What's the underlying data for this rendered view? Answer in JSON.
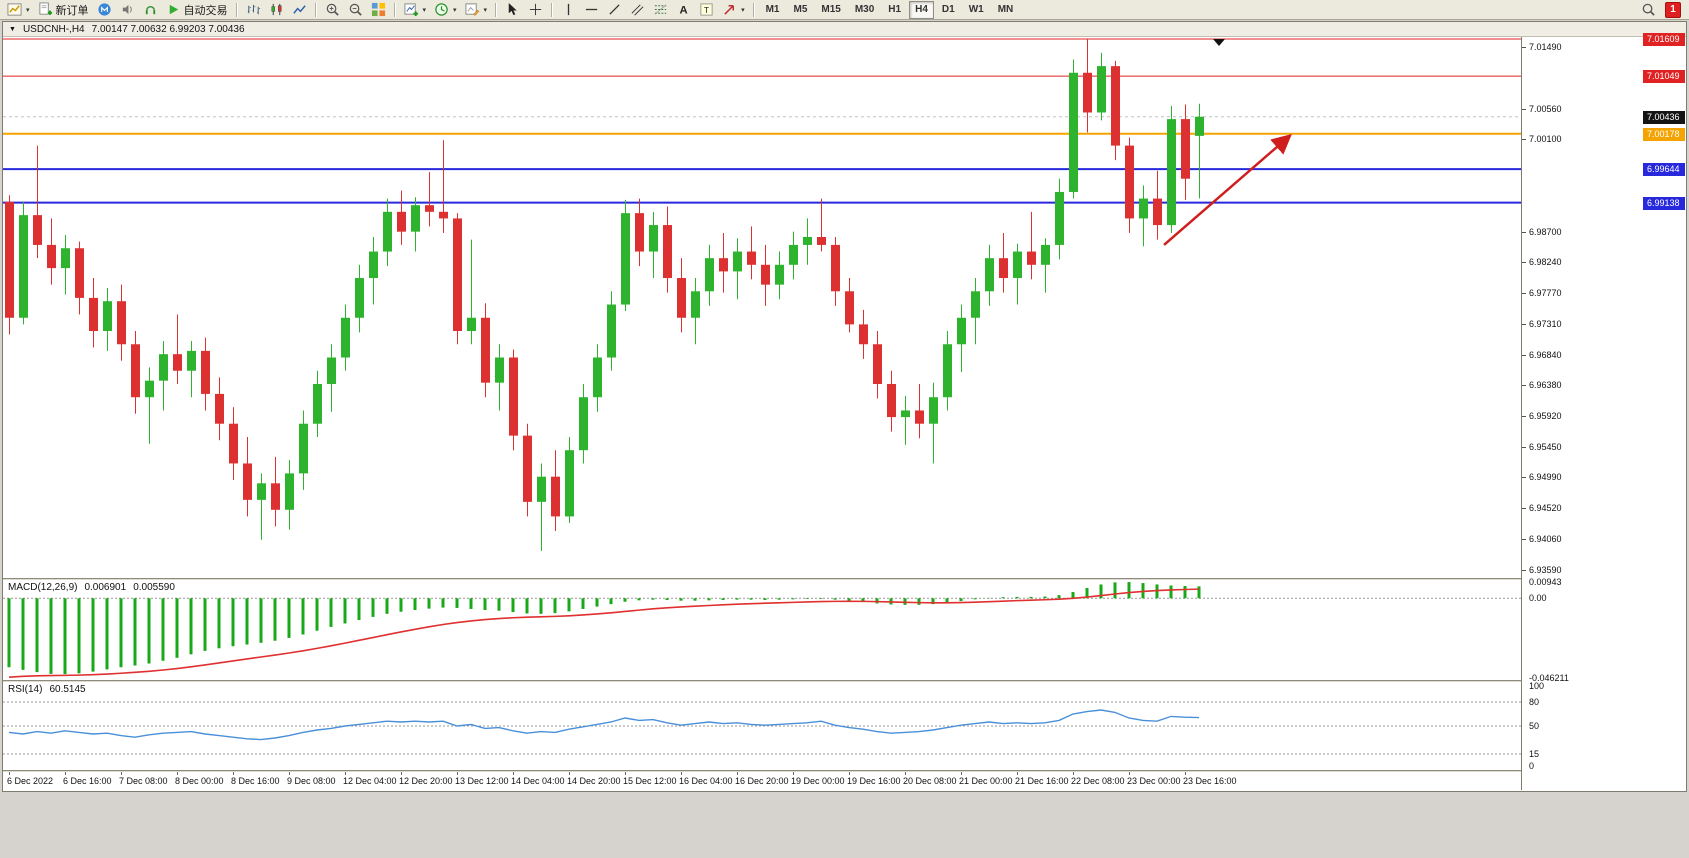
{
  "toolbar": {
    "items": [
      {
        "name": "new-chart-button",
        "icon": "newchart",
        "caret": true
      },
      {
        "name": "new-order-button",
        "icon": "neworder",
        "label": "新订单"
      },
      {
        "name": "community-button",
        "icon": "community"
      },
      {
        "name": "sounds-button",
        "icon": "sounds"
      },
      {
        "name": "support-button",
        "icon": "headset"
      },
      {
        "name": "auto-trading-button",
        "icon": "play",
        "label": "自动交易"
      },
      {
        "sep": true
      },
      {
        "name": "bar-chart-button",
        "icon": "bars"
      },
      {
        "name": "candle-chart-button",
        "icon": "candles"
      },
      {
        "name": "line-chart-button",
        "icon": "linechart"
      },
      {
        "sep": true
      },
      {
        "name": "zoom-in-button",
        "icon": "zoomin"
      },
      {
        "name": "zoom-out-button",
        "icon": "zoomout"
      },
      {
        "name": "tile-windows-button",
        "icon": "tile"
      },
      {
        "sep": true
      },
      {
        "name": "indicators-button",
        "icon": "indicators",
        "caret": true
      },
      {
        "name": "periods-button",
        "icon": "clock",
        "caret": true
      },
      {
        "name": "templates-button",
        "icon": "template",
        "caret": true
      },
      {
        "sep": true
      },
      {
        "name": "cursor-button",
        "icon": "cursor"
      },
      {
        "name": "crosshair-button",
        "icon": "crosshair"
      },
      {
        "sep": true
      },
      {
        "name": "vertical-line-button",
        "icon": "vline"
      },
      {
        "name": "horizontal-line-button",
        "icon": "hline"
      },
      {
        "name": "trendline-button",
        "icon": "trend"
      },
      {
        "name": "equidistant-channel-button",
        "icon": "channel"
      },
      {
        "name": "fibonacci-button",
        "icon": "fibo"
      },
      {
        "name": "text-button",
        "icon": "textA"
      },
      {
        "name": "text-label-button",
        "icon": "textT"
      },
      {
        "name": "arrows-button",
        "icon": "arrow",
        "caret": true
      },
      {
        "sep": true
      }
    ],
    "timeframes": [
      "M1",
      "M5",
      "M15",
      "M30",
      "H1",
      "H4",
      "D1",
      "W1",
      "MN"
    ],
    "active_timeframe": "H4",
    "notification_count": "1"
  },
  "chart_window": {
    "menu_marker": "▼",
    "symbol": "USDCNH-,H4",
    "ohlc_text": "7.00147 7.00632 6.99203 7.00436"
  },
  "price_scale": {
    "ticks": [
      "7.01490",
      "7.00560",
      "7.00100",
      "6.98700",
      "6.98240",
      "6.97770",
      "6.97310",
      "6.96840",
      "6.96380",
      "6.95920",
      "6.95450",
      "6.94990",
      "6.94520",
      "6.94060",
      "6.93590"
    ],
    "badges": [
      {
        "text": "7.01609",
        "price": 7.01609,
        "bg": "#e02222",
        "current": false
      },
      {
        "text": "7.01049",
        "price": 7.01049,
        "bg": "#e02222",
        "current": false
      },
      {
        "text": "7.00436",
        "price": 7.00436,
        "bg": "#141414",
        "current": true
      },
      {
        "text": "7.00178",
        "price": 7.00178,
        "bg": "#f5a300",
        "current": false
      },
      {
        "text": "6.99644",
        "price": 6.99644,
        "bg": "#2828dd",
        "current": false
      },
      {
        "text": "6.99138",
        "price": 6.99138,
        "bg": "#2828dd",
        "current": false
      }
    ]
  },
  "macd_panel": {
    "label": "MACD(12,26,9)",
    "main_value": "0.006901",
    "signal_value": "0.005590",
    "scale": [
      "0.00943",
      "0.00",
      "-0.046211"
    ]
  },
  "rsi_panel": {
    "label": "RSI(14)",
    "value": "60.5145",
    "scale": [
      "100",
      "80",
      "50",
      "15",
      "0"
    ]
  },
  "time_axis": {
    "labels": [
      "6 Dec 2022",
      "6 Dec 16:00",
      "7 Dec 08:00",
      "8 Dec 00:00",
      "8 Dec 16:00",
      "9 Dec 08:00",
      "12 Dec 04:00",
      "12 Dec 20:00",
      "13 Dec 12:00",
      "14 Dec 04:00",
      "14 Dec 20:00",
      "15 Dec 12:00",
      "16 Dec 04:00",
      "16 Dec 20:00",
      "19 Dec 00:00",
      "19 Dec 16:00",
      "20 Dec 08:00",
      "21 Dec 00:00",
      "21 Dec 16:00",
      "22 Dec 08:00",
      "23 Dec 00:00",
      "23 Dec 16:00"
    ]
  },
  "chart_data": {
    "type": "candlestick",
    "symbol": "USDCNH-",
    "timeframe": "H4",
    "title": "USDCNH-,H4",
    "current_bar": {
      "open": 7.00147,
      "high": 7.00632,
      "low": 6.99203,
      "close": 7.00436
    },
    "y_range": [
      6.9347,
      7.0164
    ],
    "colors": {
      "bull": "#2db32d",
      "bear": "#dd3030",
      "background": "#ffffff"
    },
    "horizontal_lines": [
      {
        "price": 7.01609,
        "color": "#e02222",
        "width": 1
      },
      {
        "price": 7.01049,
        "color": "#e02222",
        "width": 1
      },
      {
        "price": 7.00178,
        "color": "#f5a300",
        "width": 2
      },
      {
        "price": 6.99644,
        "color": "#2828dd",
        "width": 2
      },
      {
        "price": 6.99138,
        "color": "#2828dd",
        "width": 2
      }
    ],
    "x_labels_every": 4,
    "candles": [
      [
        6.9915,
        6.9925,
        6.9715,
        6.974
      ],
      [
        6.974,
        6.9915,
        6.973,
        6.9895
      ],
      [
        6.9895,
        7.0,
        6.983,
        6.985
      ],
      [
        6.985,
        6.989,
        6.979,
        6.9815
      ],
      [
        6.9815,
        6.9865,
        6.9775,
        6.9845
      ],
      [
        6.9845,
        6.9855,
        6.9745,
        6.977
      ],
      [
        6.977,
        6.98,
        6.9695,
        6.972
      ],
      [
        6.972,
        6.9785,
        6.969,
        6.9765
      ],
      [
        6.9765,
        6.979,
        6.9675,
        6.97
      ],
      [
        6.97,
        6.972,
        6.9595,
        6.962
      ],
      [
        6.962,
        6.9665,
        6.955,
        6.9645
      ],
      [
        6.9645,
        6.9705,
        6.96,
        6.9685
      ],
      [
        6.9685,
        6.9745,
        6.964,
        6.966
      ],
      [
        6.966,
        6.9705,
        6.962,
        6.969
      ],
      [
        6.969,
        6.971,
        6.96,
        6.9625
      ],
      [
        6.9625,
        6.965,
        6.9555,
        6.958
      ],
      [
        6.958,
        6.9605,
        6.9495,
        6.952
      ],
      [
        6.952,
        6.956,
        6.944,
        6.9465
      ],
      [
        6.9465,
        6.9505,
        6.9405,
        6.949
      ],
      [
        6.949,
        6.953,
        6.9425,
        6.945
      ],
      [
        6.945,
        6.9525,
        6.942,
        6.9505
      ],
      [
        6.9505,
        6.96,
        6.948,
        6.958
      ],
      [
        6.958,
        6.966,
        6.956,
        6.964
      ],
      [
        6.964,
        6.97,
        6.9598,
        6.968
      ],
      [
        6.968,
        6.976,
        6.966,
        6.974
      ],
      [
        6.974,
        6.982,
        6.9718,
        6.98
      ],
      [
        6.98,
        6.9862,
        6.976,
        6.984
      ],
      [
        6.984,
        6.992,
        6.9818,
        6.99
      ],
      [
        6.99,
        6.9932,
        6.985,
        6.987
      ],
      [
        6.987,
        6.9922,
        6.984,
        6.991
      ],
      [
        6.991,
        6.996,
        6.9878,
        6.99
      ],
      [
        6.99,
        7.0008,
        6.9868,
        6.989
      ],
      [
        6.989,
        6.9898,
        6.97,
        6.972
      ],
      [
        6.972,
        6.9858,
        6.97,
        6.974
      ],
      [
        6.974,
        6.9762,
        6.962,
        6.9642
      ],
      [
        6.9642,
        6.97,
        6.96,
        6.968
      ],
      [
        6.968,
        6.9692,
        6.954,
        6.9562
      ],
      [
        6.9562,
        6.958,
        6.944,
        6.9462
      ],
      [
        6.9462,
        6.952,
        6.9388,
        6.95
      ],
      [
        6.95,
        6.954,
        6.9418,
        6.944
      ],
      [
        6.944,
        6.956,
        6.943,
        6.954
      ],
      [
        6.954,
        6.964,
        6.952,
        6.962
      ],
      [
        6.962,
        6.97,
        6.9598,
        6.968
      ],
      [
        6.968,
        6.978,
        6.966,
        6.976
      ],
      [
        6.976,
        6.9918,
        6.975,
        6.9898
      ],
      [
        6.9898,
        6.992,
        6.9818,
        6.984
      ],
      [
        6.984,
        6.99,
        6.98,
        6.988
      ],
      [
        6.988,
        6.9908,
        6.9778,
        6.98
      ],
      [
        6.98,
        6.983,
        6.9718,
        6.974
      ],
      [
        6.974,
        6.98,
        6.97,
        6.978
      ],
      [
        6.978,
        6.985,
        6.9758,
        6.983
      ],
      [
        6.983,
        6.9868,
        6.9778,
        6.981
      ],
      [
        6.981,
        6.986,
        6.9768,
        6.984
      ],
      [
        6.984,
        6.9878,
        6.9798,
        6.982
      ],
      [
        6.982,
        6.985,
        6.9758,
        6.979
      ],
      [
        6.979,
        6.984,
        6.9768,
        6.982
      ],
      [
        6.982,
        6.987,
        6.9798,
        6.985
      ],
      [
        6.985,
        6.989,
        6.982,
        6.9862
      ],
      [
        6.9862,
        6.992,
        6.984,
        6.985
      ],
      [
        6.985,
        6.9862,
        6.9758,
        6.978
      ],
      [
        6.978,
        6.98,
        6.9718,
        6.973
      ],
      [
        6.973,
        6.9752,
        6.9678,
        6.97
      ],
      [
        6.97,
        6.972,
        6.9618,
        6.964
      ],
      [
        6.964,
        6.966,
        6.9568,
        6.959
      ],
      [
        6.959,
        6.9622,
        6.9548,
        6.96
      ],
      [
        6.96,
        6.964,
        6.9558,
        6.958
      ],
      [
        6.958,
        6.9642,
        6.952,
        6.962
      ],
      [
        6.962,
        6.972,
        6.96,
        6.97
      ],
      [
        6.97,
        6.976,
        6.9658,
        6.974
      ],
      [
        6.974,
        6.98,
        6.97,
        6.978
      ],
      [
        6.978,
        6.985,
        6.9758,
        6.983
      ],
      [
        6.983,
        6.9868,
        6.9778,
        6.98
      ],
      [
        6.98,
        6.9852,
        6.976,
        6.984
      ],
      [
        6.984,
        6.99,
        6.9798,
        6.982
      ],
      [
        6.982,
        6.986,
        6.9778,
        6.985
      ],
      [
        6.985,
        6.995,
        6.9828,
        6.993
      ],
      [
        6.993,
        7.013,
        6.992,
        7.011
      ],
      [
        7.011,
        7.0161,
        7.002,
        7.005
      ],
      [
        7.005,
        7.014,
        7.0038,
        7.012
      ],
      [
        7.012,
        7.0128,
        6.9978,
        7.0
      ],
      [
        7.0,
        7.0012,
        6.9868,
        6.989
      ],
      [
        6.989,
        6.994,
        6.9848,
        6.992
      ],
      [
        6.992,
        6.9962,
        6.9858,
        6.988
      ],
      [
        6.988,
        7.006,
        6.9868,
        7.004
      ],
      [
        7.004,
        7.0062,
        6.9918,
        6.995
      ],
      [
        7.00147,
        7.00632,
        6.99203,
        7.00436
      ]
    ],
    "indicators": {
      "macd": {
        "params": [
          12,
          26,
          9
        ],
        "main": 0.006901,
        "signal": 0.00559,
        "range": [
          -0.046211,
          0.00943
        ],
        "histogram": [
          -0.04,
          -0.0415,
          -0.0428,
          -0.0438,
          -0.044,
          -0.0435,
          -0.0425,
          -0.0412,
          -0.04,
          -0.039,
          -0.0378,
          -0.0362,
          -0.0345,
          -0.0325,
          -0.0305,
          -0.029,
          -0.0278,
          -0.0268,
          -0.0258,
          -0.0246,
          -0.023,
          -0.021,
          -0.0188,
          -0.0166,
          -0.0146,
          -0.0126,
          -0.0108,
          -0.009,
          -0.0078,
          -0.0068,
          -0.006,
          -0.0054,
          -0.0056,
          -0.0062,
          -0.0068,
          -0.0072,
          -0.008,
          -0.0088,
          -0.009,
          -0.0086,
          -0.0076,
          -0.0062,
          -0.0048,
          -0.0034,
          -0.002,
          -0.0012,
          -0.0008,
          -0.001,
          -0.0014,
          -0.0014,
          -0.0012,
          -0.001,
          -0.0008,
          -0.0008,
          -0.001,
          -0.0008,
          -0.0006,
          -0.0004,
          -0.0004,
          -0.0008,
          -0.0014,
          -0.0022,
          -0.003,
          -0.0036,
          -0.0038,
          -0.0038,
          -0.0034,
          -0.0026,
          -0.0016,
          -0.0006,
          0.0002,
          0.0006,
          0.0008,
          0.0008,
          0.001,
          0.0018,
          0.0036,
          0.006,
          0.008,
          0.0092,
          0.0094,
          0.0088,
          0.008,
          0.0074,
          0.0071,
          0.0069
        ]
      },
      "rsi": {
        "period": 14,
        "value": 60.5145,
        "levels": [
          80,
          50,
          15
        ],
        "series": [
          42,
          40,
          43,
          41,
          44,
          42,
          40,
          41,
          38,
          36,
          39,
          41,
          42,
          43,
          40,
          38,
          36,
          34,
          33,
          35,
          38,
          42,
          45,
          47,
          50,
          52,
          54,
          56,
          55,
          56,
          55,
          56,
          50,
          52,
          47,
          48,
          44,
          41,
          43,
          42,
          46,
          49,
          52,
          55,
          60,
          57,
          58,
          54,
          51,
          53,
          55,
          53,
          54,
          52,
          51,
          52,
          53,
          54,
          56,
          51,
          48,
          46,
          43,
          41,
          42,
          43,
          45,
          48,
          51,
          53,
          55,
          53,
          54,
          53,
          54,
          57,
          65,
          68,
          70,
          67,
          60,
          57,
          56,
          62,
          61,
          60.5
        ]
      }
    },
    "annotation_arrow": {
      "x1_bar": 82.5,
      "y1_price": 6.985,
      "x2_bar": 91.5,
      "y2_price": 7.0015,
      "color": "#d01e1e",
      "width": 2.5
    }
  }
}
